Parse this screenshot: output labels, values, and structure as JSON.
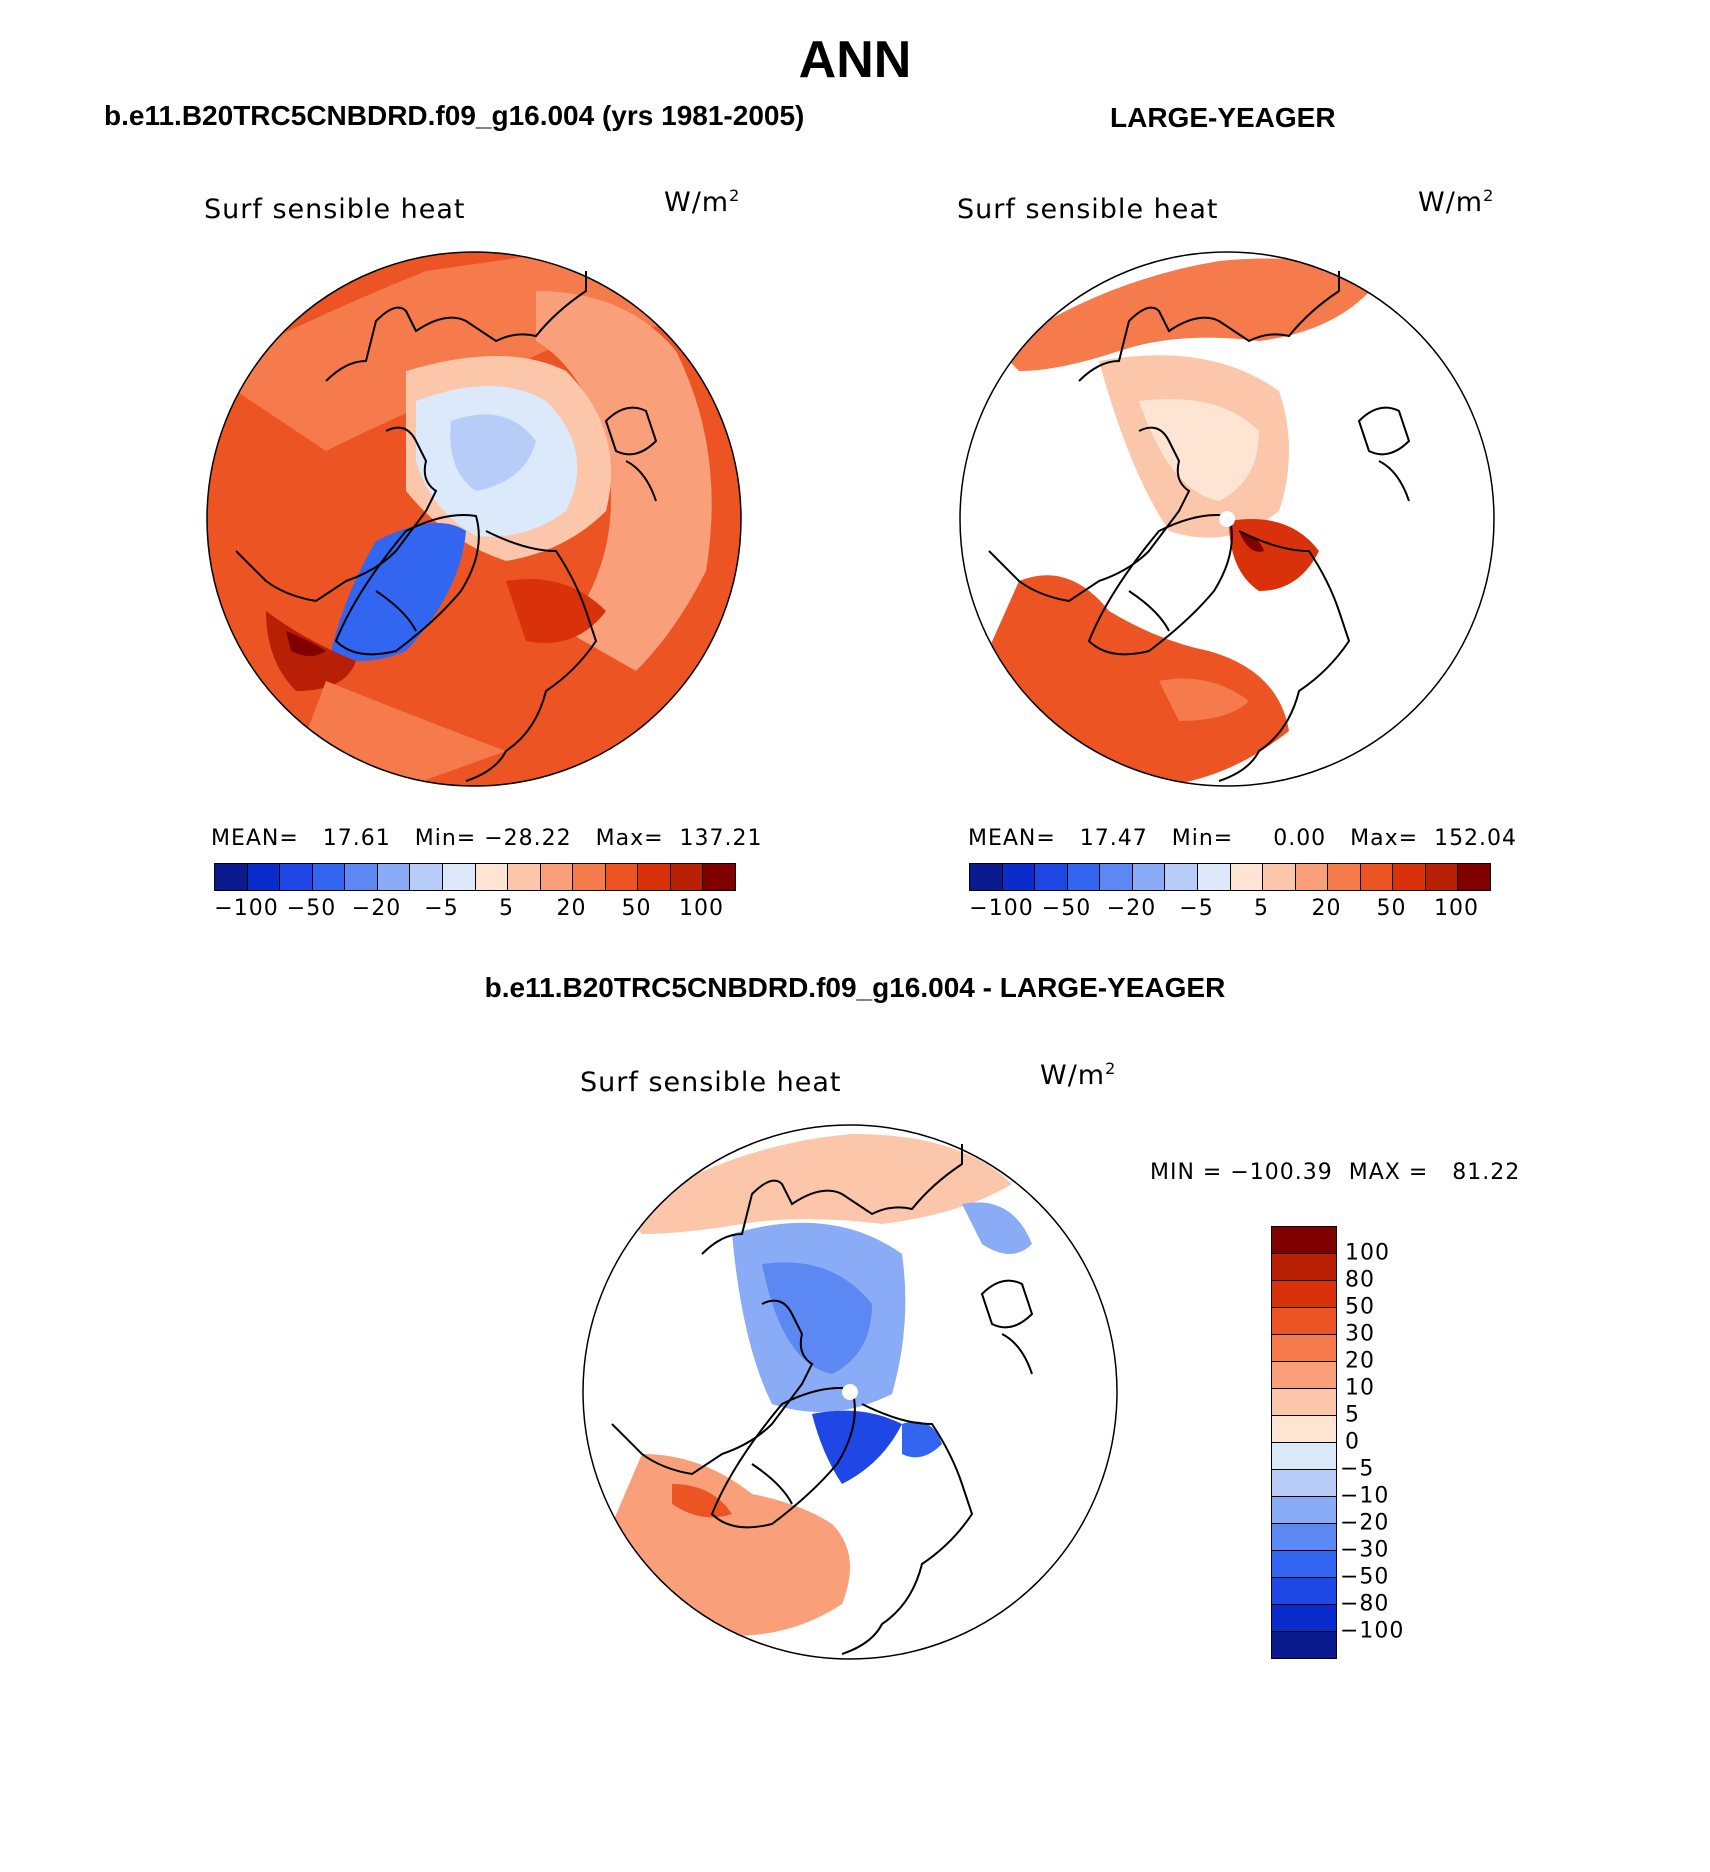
{
  "figure": {
    "main_title": "ANN",
    "diff_title": "b.e11.B20TRC5CNBDRD.f09_g16.004 - LARGE-YEAGER"
  },
  "panels": [
    {
      "title": "b.e11.B20TRC5CNBDRD.f09_g16.004 (yrs 1981-2005)",
      "variable": "Surf  sensible  heat",
      "units_base": "W/m",
      "units_exp": "2",
      "stats": "MEAN=   17.61   Min= −28.22   Max=  137.21",
      "colorbar_ticks": [
        "−100",
        "−50",
        "−20",
        "−5",
        "5",
        "20",
        "50",
        "100"
      ]
    },
    {
      "title": "LARGE-YEAGER",
      "variable": "Surf  sensible  heat",
      "units_base": "W/m",
      "units_exp": "2",
      "stats": "MEAN=   17.47   Min=     0.00   Max=  152.04",
      "colorbar_ticks": [
        "−100",
        "−50",
        "−20",
        "−5",
        "5",
        "20",
        "50",
        "100"
      ]
    },
    {
      "variable": "Surf  sensible  heat",
      "units_base": "W/m",
      "units_exp": "2",
      "stats": "MIN = −100.39  MAX =   81.22",
      "colorbar_labels": [
        "100",
        "80",
        "50",
        "30",
        "20",
        "10",
        "5",
        "0",
        "−5",
        "−10",
        "−20",
        "−30",
        "−50",
        "−80",
        "−100"
      ]
    }
  ],
  "palette": {
    "horizontal": [
      "#0a1a8f",
      "#0a2ccc",
      "#1f47e6",
      "#3366f0",
      "#5b88f2",
      "#8aabf5",
      "#b7cdf8",
      "#dbe9fb",
      "#fde4d3",
      "#fcc6ab",
      "#f9a07a",
      "#f57a4c",
      "#ec5424",
      "#d9320a",
      "#b81f05",
      "#800000"
    ],
    "vertical": [
      "#800000",
      "#b81f05",
      "#d9320a",
      "#ec5424",
      "#f57a4c",
      "#f9a07a",
      "#fcc6ab",
      "#fde4d3",
      "#dbe9fb",
      "#b7cdf8",
      "#8aabf5",
      "#5b88f2",
      "#3366f0",
      "#1f47e6",
      "#0a2ccc",
      "#0a1a8f"
    ],
    "land_outline": "#000000"
  }
}
